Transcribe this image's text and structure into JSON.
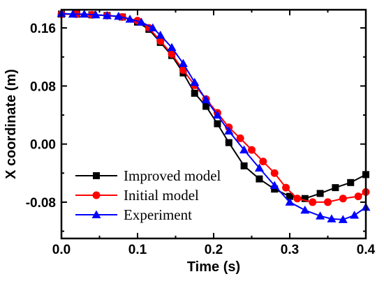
{
  "chart_data": {
    "type": "line",
    "xlabel": "Time (s)",
    "ylabel": "X coordinate (m)",
    "xlim": [
      0.0,
      0.4
    ],
    "ylim": [
      -0.13,
      0.185
    ],
    "xticks": [
      0.0,
      0.1,
      0.2,
      0.3,
      0.4
    ],
    "xtick_labels": [
      "0.0",
      "0.1",
      "0.2",
      "0.3",
      "0.4"
    ],
    "yticks": [
      -0.08,
      0.0,
      0.08,
      0.16
    ],
    "ytick_labels": [
      "-0.08",
      "0.00",
      "0.08",
      "0.16"
    ],
    "grid": false,
    "legend_position": "bottom-left",
    "series": [
      {
        "name": "Improved model",
        "color": "#000000",
        "marker": "square",
        "x": [
          0.0,
          0.02,
          0.04,
          0.06,
          0.08,
          0.1,
          0.115,
          0.13,
          0.145,
          0.16,
          0.175,
          0.19,
          0.205,
          0.22,
          0.24,
          0.26,
          0.28,
          0.3,
          0.32,
          0.34,
          0.36,
          0.38,
          0.4
        ],
        "y": [
          0.179,
          0.179,
          0.178,
          0.177,
          0.175,
          0.168,
          0.158,
          0.14,
          0.122,
          0.098,
          0.07,
          0.052,
          0.028,
          0.002,
          -0.03,
          -0.048,
          -0.062,
          -0.072,
          -0.075,
          -0.068,
          -0.06,
          -0.053,
          -0.042
        ]
      },
      {
        "name": "Initial model",
        "color": "#ff0000",
        "marker": "circle",
        "x": [
          0.0,
          0.02,
          0.04,
          0.06,
          0.08,
          0.1,
          0.115,
          0.13,
          0.145,
          0.16,
          0.175,
          0.19,
          0.205,
          0.22,
          0.235,
          0.25,
          0.265,
          0.28,
          0.295,
          0.31,
          0.33,
          0.35,
          0.37,
          0.39,
          0.4
        ],
        "y": [
          0.179,
          0.179,
          0.178,
          0.177,
          0.175,
          0.17,
          0.16,
          0.142,
          0.124,
          0.102,
          0.081,
          0.062,
          0.043,
          0.023,
          0.008,
          -0.008,
          -0.024,
          -0.04,
          -0.06,
          -0.075,
          -0.08,
          -0.08,
          -0.075,
          -0.072,
          -0.066
        ]
      },
      {
        "name": "Experiment",
        "color": "#0000ff",
        "marker": "triangle",
        "x": [
          0.0,
          0.015,
          0.03,
          0.045,
          0.06,
          0.075,
          0.09,
          0.105,
          0.12,
          0.13,
          0.145,
          0.16,
          0.175,
          0.19,
          0.205,
          0.22,
          0.24,
          0.26,
          0.28,
          0.3,
          0.32,
          0.34,
          0.355,
          0.37,
          0.385,
          0.4
        ],
        "y": [
          0.18,
          0.179,
          0.179,
          0.178,
          0.177,
          0.176,
          0.172,
          0.168,
          0.16,
          0.15,
          0.133,
          0.111,
          0.085,
          0.061,
          0.04,
          0.018,
          -0.008,
          -0.033,
          -0.057,
          -0.08,
          -0.091,
          -0.099,
          -0.103,
          -0.104,
          -0.098,
          -0.087
        ]
      }
    ]
  }
}
